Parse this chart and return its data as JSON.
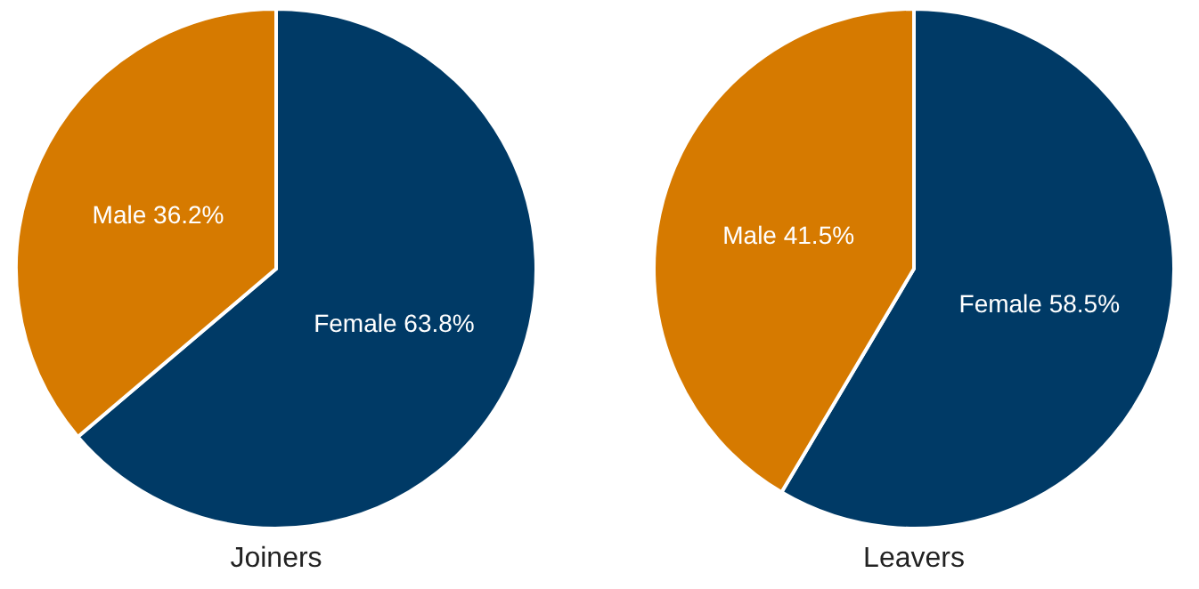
{
  "chart_data": [
    {
      "type": "pie",
      "title": "Joiners",
      "categories": [
        "Female",
        "Male"
      ],
      "values": [
        63.8,
        36.2
      ],
      "colors": [
        "#003a66",
        "#d67a00"
      ],
      "value_labels": [
        "63.8%",
        "36.2%"
      ],
      "legend": false
    },
    {
      "type": "pie",
      "title": "Leavers",
      "categories": [
        "Female",
        "Male"
      ],
      "values": [
        58.5,
        41.5
      ],
      "colors": [
        "#003a66",
        "#d67a00"
      ],
      "value_labels": [
        "58.5%",
        "41.5%"
      ],
      "legend": false
    }
  ]
}
